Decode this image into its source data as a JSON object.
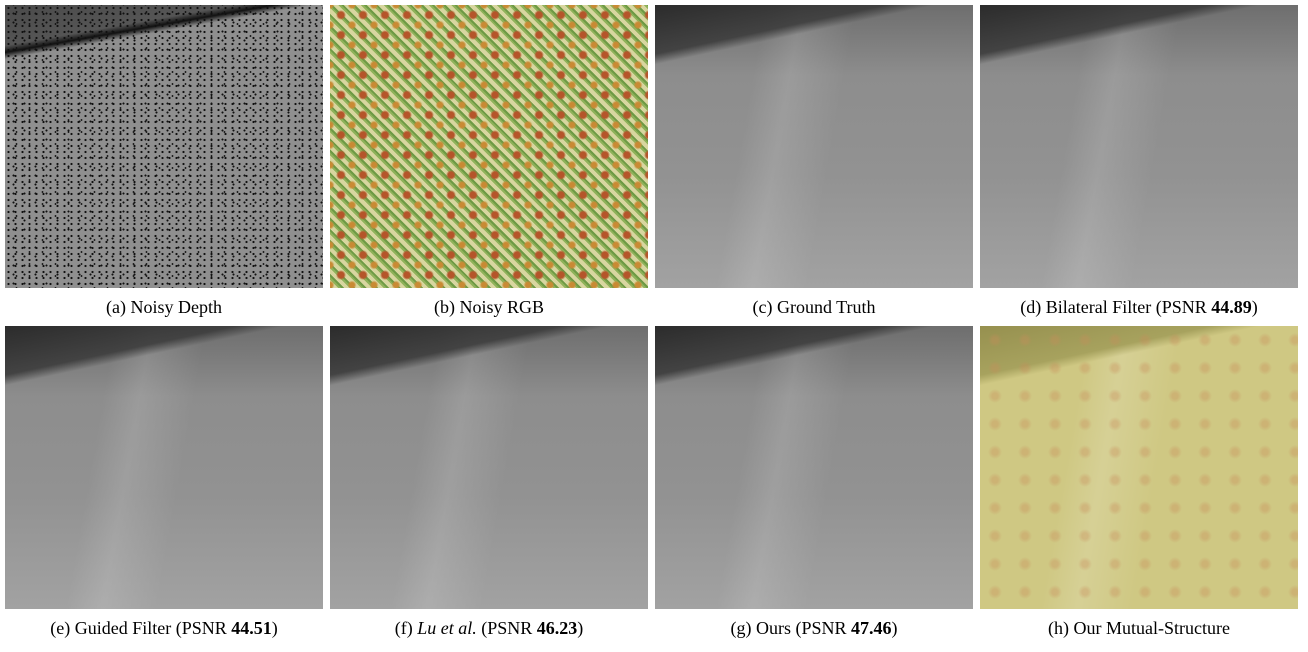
{
  "figure": {
    "panels": [
      {
        "label": "(a)",
        "method": "Noisy Depth"
      },
      {
        "label": "(b)",
        "method": "Noisy RGB"
      },
      {
        "label": "(c)",
        "method": "Ground Truth"
      },
      {
        "label": "(d)",
        "method": "Bilateral Filter",
        "psnr_open": "(PSNR",
        "psnr": "44.89",
        "psnr_close": ")"
      },
      {
        "label": "(e)",
        "method": "Guided Filter",
        "psnr_open": "(PSNR",
        "psnr": "44.51",
        "psnr_close": ")"
      },
      {
        "label": "(f)",
        "method": "Lu et al.",
        "method_italic": true,
        "psnr_open": "(PSNR",
        "psnr": "46.23",
        "psnr_close": ")"
      },
      {
        "label": "(g)",
        "method": "Ours",
        "psnr_open": "(PSNR",
        "psnr": "47.46",
        "psnr_close": ")"
      },
      {
        "label": "(h)",
        "method": "Our Mutual-Structure"
      }
    ]
  }
}
